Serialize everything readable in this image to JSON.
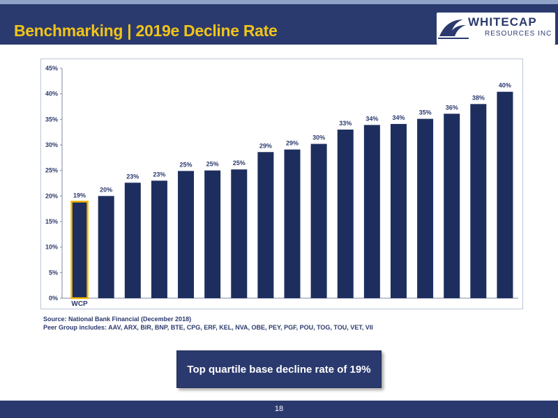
{
  "header": {
    "title": "Benchmarking | 2019e Decline Rate"
  },
  "logo": {
    "name": "WHITECAP",
    "sub": "RESOURCES INC"
  },
  "colors": {
    "navy": "#1d2e5e",
    "header": "#2b3a6e",
    "accent": "#f0c419",
    "highlight_border": "#f2b705"
  },
  "chart_data": {
    "type": "bar",
    "categories": [
      "WCP",
      "",
      "",
      "",
      "",
      "",
      "",
      "",
      "",
      "",
      "",
      "",
      "",
      "",
      "",
      "",
      ""
    ],
    "values": [
      19,
      20,
      23,
      23,
      25,
      25,
      25,
      29,
      29,
      30,
      33,
      34,
      34,
      35,
      36,
      38,
      40
    ],
    "data_labels": [
      "19%",
      "20%",
      "23%",
      "23%",
      "25%",
      "25%",
      "25%",
      "29%",
      "29%",
      "30%",
      "33%",
      "34%",
      "34%",
      "35%",
      "36%",
      "38%",
      "40%"
    ],
    "values_exact": [
      18.9,
      20.0,
      22.6,
      23.0,
      24.9,
      25.0,
      25.2,
      28.6,
      29.1,
      30.2,
      33.0,
      33.9,
      34.1,
      35.1,
      36.1,
      38.0,
      40.4
    ],
    "highlight_index": 0,
    "ylim": [
      0,
      45
    ],
    "yticks": [
      0,
      5,
      10,
      15,
      20,
      25,
      30,
      35,
      40,
      45
    ],
    "ytick_labels": [
      "0%",
      "5%",
      "10%",
      "15%",
      "20%",
      "25%",
      "30%",
      "35%",
      "40%",
      "45%"
    ],
    "title": "",
    "xlabel": "",
    "ylabel": "",
    "grid": false,
    "legend": "none"
  },
  "sources": {
    "line1": "Source: National Bank Financial (December 2018)",
    "line2": "Peer Group includes:  AAV, ARX, BIR, BNP, BTE, CPG, ERF, KEL, NVA, OBE, PEY, PGF, POU, TOG, TOU, VET, VII"
  },
  "callout": {
    "text": "Top quartile base decline rate of 19%"
  },
  "footer": {
    "page": "18"
  }
}
